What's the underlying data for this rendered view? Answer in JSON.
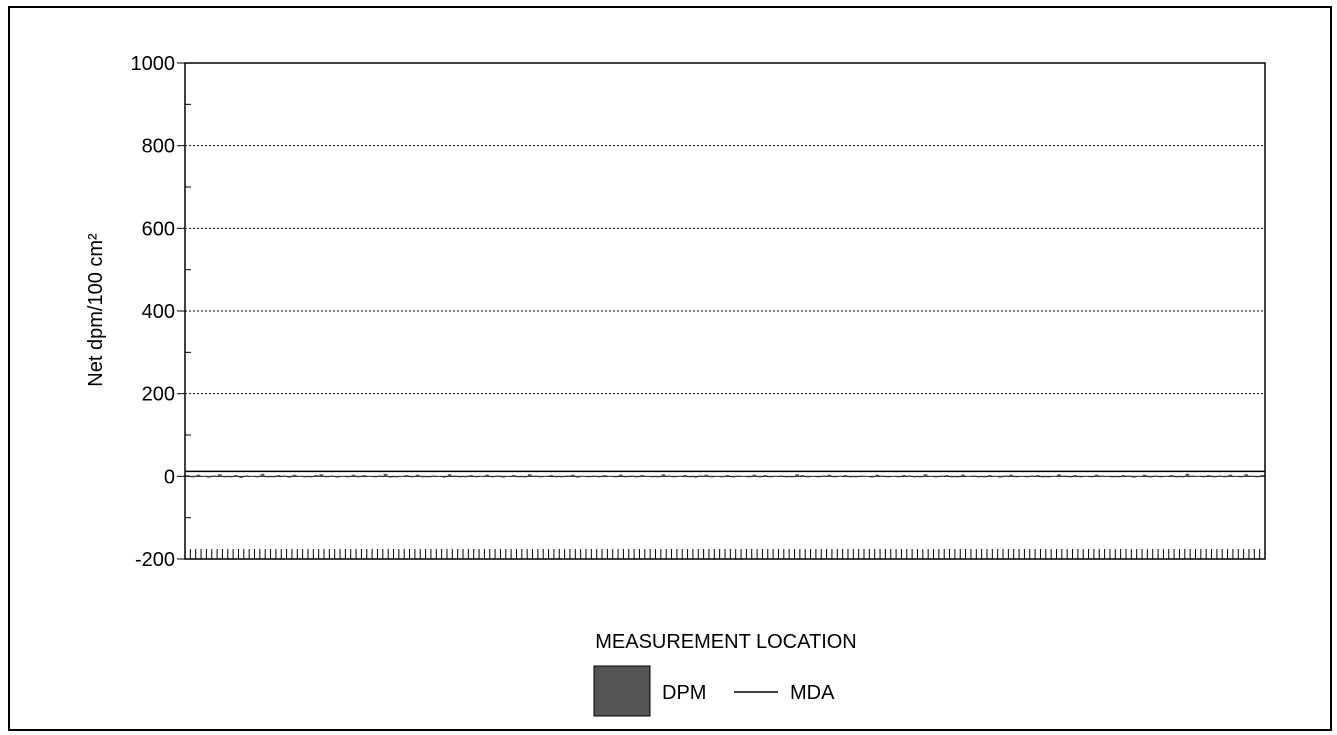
{
  "chart_data": {
    "type": "bar",
    "title": "",
    "xlabel": "MEASUREMENT LOCATION",
    "ylabel": "Net dpm/100 cm²",
    "ylim": [
      -200,
      1000
    ],
    "yticks": [
      -200,
      0,
      200,
      400,
      600,
      800,
      1000
    ],
    "grid": true,
    "legend_position": "bottom-center",
    "series": [
      {
        "name": "DPM",
        "kind": "bar",
        "color": "#555555",
        "values": [
          3,
          -2,
          4,
          1,
          -3,
          2,
          5,
          -1,
          0,
          3,
          -4,
          2,
          1,
          -2,
          6,
          0,
          -1,
          3,
          2,
          -3,
          4,
          1,
          0,
          -2,
          3,
          5,
          -1,
          2,
          -3,
          1,
          0,
          4,
          -2,
          3,
          1,
          -1,
          2,
          6,
          -3,
          0,
          1,
          3,
          -2,
          4,
          0,
          -1,
          2,
          1,
          -3,
          5,
          2,
          0,
          -1,
          3,
          -2,
          1,
          4,
          0,
          2,
          -3,
          1,
          3,
          -1,
          0,
          5,
          2,
          -2,
          1,
          3,
          -1,
          0,
          2,
          4,
          -3,
          1,
          0,
          2,
          -1,
          3,
          1,
          -2,
          4,
          0,
          2,
          -1,
          3,
          1,
          0,
          -2,
          5,
          2,
          -1,
          1,
          3,
          0,
          -3,
          2,
          4,
          -1,
          1,
          0,
          3,
          -2,
          2,
          1,
          -1,
          4,
          0,
          3,
          -2,
          1,
          2,
          0,
          -1,
          5,
          3,
          -2,
          1,
          0,
          2,
          4,
          -1,
          1,
          3,
          0,
          -2,
          2,
          1,
          -3,
          4,
          2,
          0,
          1,
          -1,
          3,
          2,
          -2,
          0,
          5,
          1,
          -1,
          2,
          3,
          0,
          -2,
          4,
          1,
          2,
          -1,
          0,
          3,
          1,
          -3,
          2,
          4,
          0,
          1,
          -1,
          2,
          3,
          -2,
          0,
          1,
          5,
          2,
          -1,
          3,
          0,
          1,
          -2,
          4,
          2,
          1,
          -1,
          0,
          3,
          2,
          -3,
          1,
          4,
          0,
          2,
          -1,
          1,
          3,
          -2,
          0,
          6,
          2,
          1,
          -1,
          3,
          0,
          2,
          -2,
          4,
          1,
          0,
          5,
          2,
          -1,
          3
        ]
      },
      {
        "name": "MDA",
        "kind": "line",
        "color": "#000000",
        "value": 12
      }
    ]
  }
}
